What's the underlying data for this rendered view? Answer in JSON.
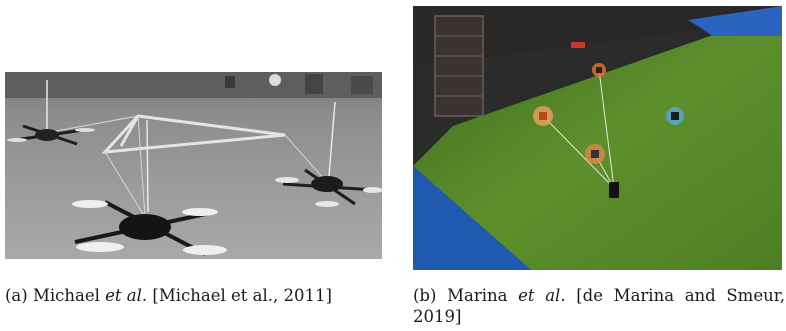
{
  "figure": {
    "panels": [
      {
        "caption": {
          "tag": "(a)",
          "author": "Michael",
          "etal": "et al.",
          "citation": "[Michael et al., 2011]"
        },
        "photo_subject": "three quadrotors tethered to a triangular rod frame, grayscale"
      },
      {
        "caption": {
          "tag": "(b)",
          "author": "Marina",
          "etal": "et al.",
          "citation": "[de Marina and Smeur, 2019]"
        },
        "photo_subject": "three quadrotors carrying a cable-suspended payload over green turf, overhead view"
      }
    ]
  }
}
